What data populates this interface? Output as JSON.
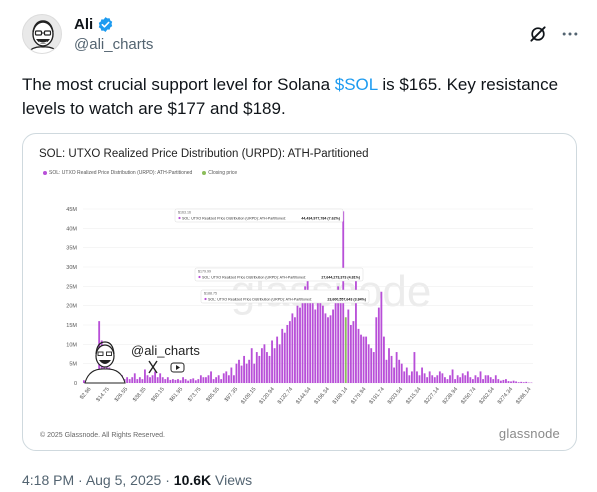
{
  "author": {
    "name": "Ali",
    "handle": "@ali_charts"
  },
  "icons": {
    "verified": "verified-badge-icon",
    "grok": "grok-icon",
    "more": "more-options-icon"
  },
  "tweet": {
    "text_before": "The most crucial support level for Solana ",
    "cashtag": "$SOL",
    "text_after": " is $165. Key resistance levels to watch are $177 and $189."
  },
  "footer": {
    "time": "4:18 PM",
    "separator": " · ",
    "date": "Aug 5, 2025",
    "views_count": "10.6K",
    "views_label": "Views"
  },
  "colors": {
    "accent": "#1d9bf0",
    "bar": "#b84fd8",
    "closing_price": "#8bbd5a"
  },
  "chart_data": {
    "type": "bar",
    "title": "SOL: UTXO Realized Price Distribution (URPD): ATH-Partitioned",
    "legend": [
      {
        "label": "SOL: UTXO Realized Price Distribution (URPD): ATH-Partitioned",
        "color": "#b84fd8"
      },
      {
        "label": "Closing price",
        "color": "#8bbd5a"
      }
    ],
    "ylim": [
      0,
      45000000
    ],
    "yticks": [
      "0",
      "5M",
      "10M",
      "15M",
      "20M",
      "25M",
      "30M",
      "35M",
      "40M",
      "45M"
    ],
    "xticks": [
      "$2.96",
      "$14.75",
      "$26.55",
      "$38.35",
      "$50.15",
      "$61.95",
      "$73.75",
      "$85.55",
      "$97.35",
      "$109.15",
      "$120.94",
      "$132.74",
      "$144.54",
      "$156.34",
      "$168.14",
      "$179.94",
      "$191.74",
      "$203.54",
      "$215.34",
      "$227.14",
      "$238.94",
      "$250.74",
      "$262.54",
      "$274.34",
      "$286.14"
    ],
    "values": [
      0.7,
      0.3,
      1.0,
      0.4,
      0.5,
      0.3,
      16.0,
      11.0,
      7.0,
      5.5,
      4.0,
      3.5,
      2.0,
      1.5,
      1.5,
      2.0,
      1.0,
      1.5,
      1.0,
      1.5,
      2.5,
      1.0,
      1.5,
      1.0,
      3.5,
      2.0,
      1.5,
      2.0,
      3.0,
      1.5,
      2.5,
      1.5,
      1.0,
      1.5,
      0.8,
      1.0,
      0.8,
      1.0,
      0.7,
      1.5,
      1.0,
      0.6,
      1.0,
      1.2,
      0.7,
      1.0,
      2.0,
      1.5,
      1.5,
      2.0,
      3.0,
      1.0,
      1.5,
      2.0,
      1.0,
      2.5,
      3.0,
      2.0,
      4.0,
      2.0,
      5.0,
      6.0,
      4.5,
      7.0,
      5.0,
      6.0,
      9.0,
      5.0,
      8.0,
      7.0,
      9.0,
      10.0,
      8.0,
      7.0,
      11.0,
      9.0,
      12.0,
      10.0,
      14.0,
      13.0,
      15.0,
      16.0,
      18.0,
      17.0,
      20.0,
      19.5,
      22.0,
      25.0,
      27.0,
      23.5,
      21.0,
      19.0,
      22.0,
      24.0,
      20.0,
      18.0,
      17.0,
      17.5,
      19.0,
      23.0,
      25.0,
      21.0,
      44.4,
      17.0,
      19.0,
      15.0,
      16.0,
      27.6,
      14.0,
      12.5,
      12.0,
      12.0,
      10.0,
      9.0,
      8.0,
      17.0,
      19.5,
      23.6,
      12.0,
      6.0,
      9.0,
      7.0,
      4.0,
      8.0,
      6.0,
      5.0,
      3.0,
      4.0,
      2.0,
      3.0,
      8.0,
      3.0,
      2.0,
      4.0,
      2.5,
      1.5,
      3.0,
      2.0,
      1.5,
      2.0,
      3.0,
      2.5,
      1.5,
      1.0,
      2.0,
      3.5,
      1.0,
      2.0,
      1.5,
      2.5,
      2.0,
      3.0,
      1.5,
      1.0,
      2.0,
      1.5,
      3.0,
      1.0,
      2.0,
      2.0,
      1.5,
      1.0,
      2.0,
      1.0,
      0.6,
      0.8,
      1.0,
      0.5,
      0.4,
      0.6,
      0.4,
      0.2,
      0.3,
      0.2,
      0.3,
      0.1,
      0.1
    ],
    "closing_price_index": 103,
    "tooltips": [
      {
        "price": "$163.16",
        "label": "SOL: UTXO Realized Price Distribution (URPD): ATH-Partitioned:",
        "value": "44,434,977,784 (7.62%)"
      },
      {
        "price": "$179.99",
        "label": "SOL: UTXO Realized Price Distribution (URPD): ATH-Partitioned:",
        "value": "27,644,273,373 (4.81%)"
      },
      {
        "price": "$188.75",
        "label": "SOL: UTXO Realized Price Distribution (URPD): ATH-Partitioned:",
        "value": "23,600,557,643 (3.84%)"
      }
    ],
    "watermark_handle": "@ali_charts",
    "copyright": "© 2025 Glassnode. All Rights Reserved.",
    "brand": "glassnode"
  }
}
